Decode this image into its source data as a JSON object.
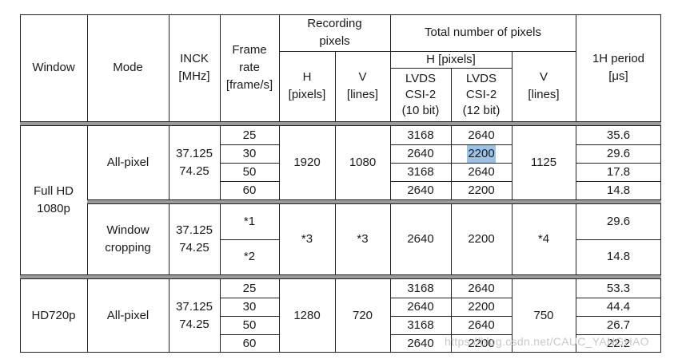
{
  "headers": {
    "window": "Window",
    "mode": "Mode",
    "inck": "INCK\n[MHz]",
    "frame_rate": "Frame\nrate\n[frame/s]",
    "recording_pixels": "Recording\npixels",
    "rec_h": "H\n[pixels]",
    "rec_v": "V\n[lines]",
    "total_pixels": "Total number of pixels",
    "total_h": "H [pixels]",
    "lvds10": "LVDS\nCSI-2\n(10 bit)",
    "lvds12": "LVDS\nCSI-2\n(12 bit)",
    "total_v": "V\n[lines]",
    "period": "1H period\n[μs]"
  },
  "groups": [
    {
      "window": "Full HD\n1080p",
      "modes": [
        {
          "mode": "All-pixel",
          "inck": "37.125\n74.25",
          "rec_h": "1920",
          "rec_v": "1080",
          "total_v": "1125",
          "rows": [
            {
              "frame": "25",
              "h10": "3168",
              "h12": "2640",
              "period": "35.6"
            },
            {
              "frame": "30",
              "h10": "2640",
              "h12": "2200",
              "period": "29.6"
            },
            {
              "frame": "50",
              "h10": "3168",
              "h12": "2640",
              "period": "17.8"
            },
            {
              "frame": "60",
              "h10": "2640",
              "h12": "2200",
              "period": "14.8"
            }
          ]
        },
        {
          "mode": "Window\ncropping",
          "inck": "37.125\n74.25",
          "rec_h": "*3",
          "rec_v": "*3",
          "total_v": "*4",
          "h10": "2640",
          "h12": "2200",
          "rows": [
            {
              "frame": "*1",
              "period": "29.6"
            },
            {
              "frame": "*2",
              "period": "14.8"
            }
          ]
        }
      ]
    },
    {
      "window": "HD720p",
      "modes": [
        {
          "mode": "All-pixel",
          "inck": "37.125\n74.25",
          "rec_h": "1280",
          "rec_v": "720",
          "total_v": "750",
          "rows": [
            {
              "frame": "25",
              "h10": "3168",
              "h12": "2640",
              "period": "53.3"
            },
            {
              "frame": "30",
              "h10": "2640",
              "h12": "2200",
              "period": "44.4"
            },
            {
              "frame": "50",
              "h10": "3168",
              "h12": "2640",
              "period": "26.7"
            },
            {
              "frame": "60",
              "h10": "2640",
              "h12": "2200",
              "period": "22.2"
            }
          ]
        }
      ]
    }
  ],
  "highlight_color": "#9cc3e6",
  "watermark": "https://blog.csdn.net/CAUC_YANGHAO"
}
